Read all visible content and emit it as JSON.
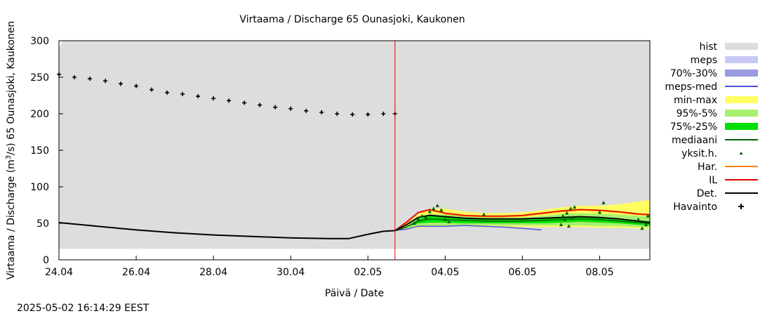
{
  "chart_data": {
    "type": "line",
    "title": "Virtaama / Discharge  65 Ounasjoki, Kaukonen",
    "xlabel": "Päivä / Date",
    "ylabel_parts": [
      "Virtaama / Discharge (m",
      "3",
      "/s)  65 Ounasjoki, Kaukonen"
    ],
    "timestamp": "2025-05-02 16:14:29 EEST",
    "xlim": [
      0,
      15.3
    ],
    "ylim": [
      0,
      300
    ],
    "x_ticks": [
      {
        "x": 0,
        "label": "24.04"
      },
      {
        "x": 2,
        "label": "26.04"
      },
      {
        "x": 4,
        "label": "28.04"
      },
      {
        "x": 6,
        "label": "30.04"
      },
      {
        "x": 8,
        "label": "02.05"
      },
      {
        "x": 10,
        "label": "04.05"
      },
      {
        "x": 12,
        "label": "06.05"
      },
      {
        "x": 14,
        "label": "08.05"
      }
    ],
    "y_ticks": [
      {
        "y": 0,
        "label": "0"
      },
      {
        "y": 50,
        "label": "50"
      },
      {
        "y": 100,
        "label": "100"
      },
      {
        "y": 150,
        "label": "150"
      },
      {
        "y": 200,
        "label": "200"
      },
      {
        "y": 250,
        "label": "250"
      },
      {
        "y": 300,
        "label": "300"
      }
    ],
    "forecast_start_x": 8.7,
    "colors": {
      "hist": "#dddddd",
      "meps": "#c8c8f8",
      "meps_70_30": "#9a9ae0",
      "meps_med": "#5050e0",
      "min_max": "#ffff60",
      "p95_5": "#a8f070",
      "p75_25": "#00e000",
      "mediaani": "#006000",
      "yksit": "#006000",
      "har": "#ff8000",
      "il": "#e00000",
      "det": "#000000",
      "havainto": "#000000",
      "vline": "#e00000"
    },
    "legend": {
      "placement": "right",
      "entries": [
        {
          "label": "hist",
          "style": "box",
          "color": "#dddddd"
        },
        {
          "label": "meps",
          "style": "box",
          "color": "#c8c8f8"
        },
        {
          "label": "70%-30%",
          "style": "box",
          "color": "#9a9ae0"
        },
        {
          "label": "meps-med",
          "style": "line",
          "color": "#5050e0"
        },
        {
          "label": "min-max",
          "style": "box",
          "color": "#ffff60"
        },
        {
          "label": "95%-5%",
          "style": "box",
          "color": "#a8f070"
        },
        {
          "label": "75%-25%",
          "style": "box",
          "color": "#00e000"
        },
        {
          "label": "mediaani",
          "style": "line",
          "color": "#006000"
        },
        {
          "label": "yksit.h.",
          "style": "dot",
          "color": "#006000"
        },
        {
          "label": "Har.",
          "style": "line",
          "color": "#ff8000"
        },
        {
          "label": "IL",
          "style": "line",
          "color": "#e00000"
        },
        {
          "label": "Det.",
          "style": "line",
          "color": "#000000"
        },
        {
          "label": "Havainto",
          "style": "plus",
          "color": "#000000"
        }
      ]
    },
    "series": {
      "hist_band": {
        "x": [
          0,
          0.1,
          15.3
        ],
        "lower": [
          15,
          15,
          15
        ],
        "upper": [
          290,
          300,
          300
        ]
      },
      "min_max": {
        "x": [
          8.7,
          9.0,
          9.3,
          9.6,
          10.0,
          10.5,
          11.0,
          11.5,
          12.0,
          12.5,
          13.0,
          13.5,
          14.0,
          14.5,
          15.0,
          15.3
        ],
        "lower": [
          40,
          42,
          44,
          45,
          46,
          46,
          45,
          45,
          45,
          45,
          45,
          45,
          44,
          44,
          43,
          42
        ],
        "upper": [
          40,
          48,
          62,
          70,
          70,
          66,
          64,
          64,
          65,
          68,
          72,
          74,
          74,
          76,
          80,
          82
        ]
      },
      "p95_5": {
        "x": [
          8.7,
          9.0,
          9.3,
          9.6,
          10.0,
          10.5,
          11.0,
          11.5,
          12.0,
          12.5,
          13.0,
          13.5,
          14.0,
          14.5,
          15.0,
          15.3
        ],
        "lower": [
          40,
          43,
          46,
          47,
          47,
          47,
          47,
          47,
          47,
          47,
          47,
          47,
          46,
          46,
          45,
          44
        ],
        "upper": [
          40,
          46,
          58,
          63,
          62,
          60,
          58,
          58,
          58,
          60,
          63,
          64,
          63,
          62,
          60,
          59
        ]
      },
      "p75_25": {
        "x": [
          8.7,
          9.0,
          9.3,
          9.6,
          10.0,
          10.5,
          11.0,
          11.5,
          12.0,
          12.5,
          13.0,
          13.5,
          14.0,
          14.5,
          15.0,
          15.3
        ],
        "lower": [
          40,
          45,
          50,
          51,
          51,
          50,
          50,
          50,
          50,
          50,
          51,
          52,
          51,
          50,
          48,
          47
        ],
        "upper": [
          40,
          45,
          56,
          60,
          58,
          56,
          55,
          55,
          55,
          56,
          58,
          59,
          58,
          56,
          54,
          53
        ]
      },
      "mediaani": {
        "x": [
          8.7,
          9.0,
          9.3,
          9.6,
          10.0,
          10.5,
          11.0,
          11.5,
          12.0,
          12.5,
          13.0,
          13.5,
          14.0,
          14.5,
          15.0,
          15.3
        ],
        "y": [
          40,
          45,
          53,
          56,
          55,
          54,
          53,
          53,
          53,
          54,
          55,
          56,
          55,
          53,
          51,
          50
        ]
      },
      "meps_med": {
        "x": [
          8.7,
          9.0,
          9.3,
          9.6,
          10.0,
          10.5,
          11.0,
          11.5,
          12.0,
          12.5
        ],
        "y": [
          40,
          42,
          46,
          46,
          46,
          47,
          46,
          45,
          43,
          41
        ]
      },
      "har": {
        "x": [
          8.7,
          9.0,
          9.3,
          9.6,
          10.0,
          10.5,
          11.0,
          11.5,
          12.0,
          12.5,
          13.0,
          13.5,
          14.0,
          14.5,
          15.0,
          15.3
        ],
        "y": [
          40,
          50,
          64,
          68,
          63,
          60,
          59,
          59,
          60,
          63,
          66,
          68,
          67,
          65,
          62,
          61
        ]
      },
      "il": {
        "x": [
          8.7,
          9.0,
          9.3,
          9.6,
          10.0,
          10.5,
          11.0,
          11.5,
          12.0,
          12.5,
          13.0,
          13.5,
          14.0,
          14.5,
          15.0,
          15.3
        ],
        "y": [
          40,
          52,
          65,
          69,
          64,
          61,
          60,
          60,
          61,
          64,
          67,
          69,
          68,
          66,
          63,
          62
        ]
      },
      "det": {
        "x": [
          0,
          1,
          2,
          3,
          4,
          5,
          6,
          7,
          7.5,
          8.0,
          8.4,
          8.7,
          9.0,
          9.3,
          9.6,
          10.0,
          10.5,
          11.0,
          11.5,
          12.0,
          12.5,
          13.0,
          13.5,
          14.0,
          14.5,
          15.0,
          15.3
        ],
        "y": [
          51,
          46,
          41,
          37,
          34,
          32,
          30,
          29,
          29,
          35,
          39,
          40,
          48,
          58,
          61,
          59,
          57,
          56,
          56,
          56,
          57,
          58,
          59,
          58,
          56,
          53,
          51
        ]
      },
      "havainto": {
        "x": [
          0,
          0.4,
          0.8,
          1.2,
          1.6,
          2.0,
          2.4,
          2.8,
          3.2,
          3.6,
          4.0,
          4.4,
          4.8,
          5.2,
          5.6,
          6.0,
          6.4,
          6.8,
          7.2,
          7.6,
          8.0,
          8.4,
          8.7
        ],
        "y": [
          254,
          250,
          248,
          245,
          241,
          238,
          233,
          229,
          227,
          224,
          221,
          218,
          215,
          212,
          209,
          207,
          204,
          202,
          200,
          199,
          199,
          200,
          200
        ]
      },
      "yksit": {
        "x": [
          9.2,
          9.3,
          9.4,
          9.5,
          9.6,
          9.7,
          9.8,
          9.9,
          10.0,
          10.1,
          11.0,
          13.0,
          13.05,
          13.1,
          13.15,
          13.2,
          13.25,
          13.3,
          13.35,
          14.0,
          14.1,
          15.0,
          15.1,
          15.2,
          15.25
        ],
        "y": [
          50,
          56,
          60,
          58,
          66,
          70,
          74,
          68,
          55,
          52,
          62,
          48,
          60,
          55,
          64,
          46,
          70,
          58,
          72,
          65,
          78,
          55,
          43,
          48,
          60
        ]
      }
    }
  }
}
